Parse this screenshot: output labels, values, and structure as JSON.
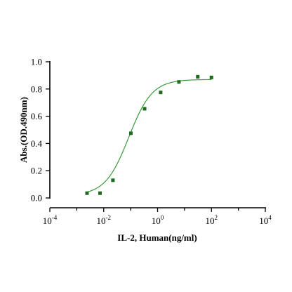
{
  "chart_data": {
    "type": "scatter",
    "title": "",
    "xlabel": "IL-2, Human(ng/ml)",
    "ylabel": "Abs.(OD.490nm)",
    "x_scale": "log",
    "xlim": [
      0.0001,
      10000
    ],
    "ylim": [
      0,
      1.0
    ],
    "grid": false,
    "legend": "none",
    "x_ticks": [
      {
        "base": "10",
        "exp": "-4"
      },
      {
        "base": "10",
        "exp": "-2"
      },
      {
        "base": "10",
        "exp": "0"
      },
      {
        "base": "10",
        "exp": "2"
      },
      {
        "base": "10",
        "exp": "4"
      }
    ],
    "y_ticks": [
      "0.0",
      "0.2",
      "0.4",
      "0.6",
      "0.8",
      "1.0"
    ],
    "series": [
      {
        "points": [
          {
            "x": 0.0024,
            "y": 0.035
          },
          {
            "x": 0.0073,
            "y": 0.035
          },
          {
            "x": 0.022,
            "y": 0.13
          },
          {
            "x": 0.102,
            "y": 0.475
          },
          {
            "x": 0.33,
            "y": 0.655
          },
          {
            "x": 1.3,
            "y": 0.775
          },
          {
            "x": 6.2,
            "y": 0.852
          },
          {
            "x": 31,
            "y": 0.89
          },
          {
            "x": 100,
            "y": 0.885
          }
        ],
        "fit": {
          "model": "4PL",
          "bottom": 0.02,
          "top": 0.87,
          "ec50": 0.085,
          "hill": 1.0
        }
      }
    ],
    "colors": {
      "marker": "#1e6b1e",
      "curve": "#3a9a3a"
    }
  }
}
